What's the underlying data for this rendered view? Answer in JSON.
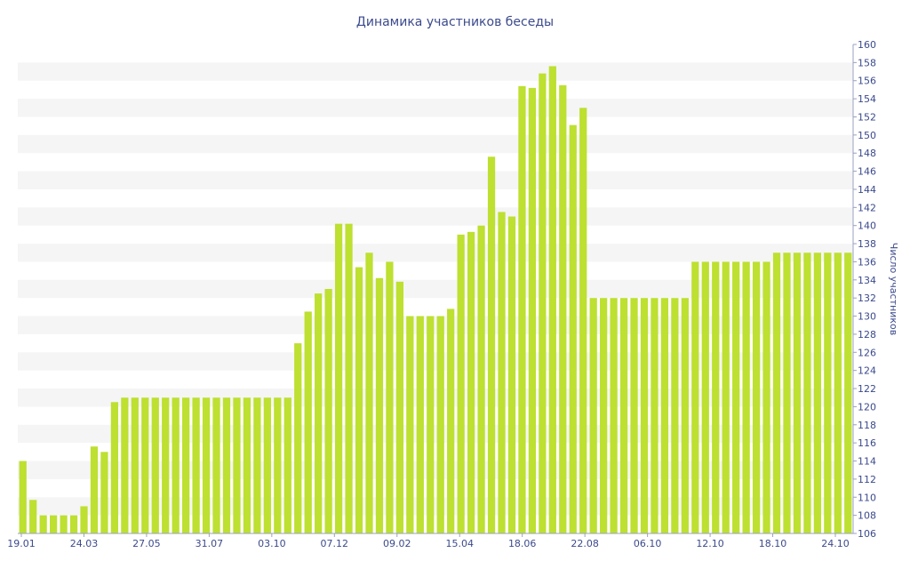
{
  "chart_data": {
    "type": "bar",
    "title": "Динамика участников беседы",
    "xlabel": "",
    "ylabel": "Число участников",
    "ylim": [
      106,
      160
    ],
    "y_ticks": [
      106,
      108,
      110,
      112,
      114,
      116,
      118,
      120,
      122,
      124,
      126,
      128,
      130,
      132,
      134,
      136,
      138,
      140,
      142,
      144,
      146,
      148,
      150,
      152,
      154,
      156,
      158,
      160
    ],
    "x_tick_labels": [
      "19.01",
      "24.03",
      "27.05",
      "31.07",
      "03.10",
      "07.12",
      "09.02",
      "15.04",
      "18.06",
      "22.08",
      "06.10",
      "12.10",
      "18.10",
      "24.10"
    ],
    "y_axis_position": "right",
    "grid": "horizontal-bands",
    "colors": {
      "bar": "#bde031",
      "band": "#f5f5f5",
      "text": "#3b4a8c",
      "axis": "#9aa0c0"
    },
    "series": [
      {
        "values": [
          114,
          109.7,
          108,
          108,
          108,
          108,
          109,
          115.6,
          115,
          120.5,
          121,
          121,
          121,
          121,
          121,
          121,
          121,
          121,
          121,
          121,
          121,
          121,
          121,
          121,
          121,
          121,
          121,
          127,
          130.5,
          132.5,
          133,
          140.2,
          140.2,
          135.4,
          137,
          134.2,
          136,
          133.8,
          130,
          130,
          130,
          130,
          130.8,
          139,
          139.3,
          140,
          147.6,
          141.5,
          141,
          155.4,
          155.2,
          156.8,
          157.6,
          155.5,
          151.1,
          153,
          132,
          132,
          132,
          132,
          132,
          132,
          132,
          132,
          132,
          132,
          136,
          136,
          136,
          136,
          136,
          136,
          136,
          136,
          137,
          137,
          137,
          137,
          137,
          137,
          137,
          137
        ]
      }
    ]
  }
}
